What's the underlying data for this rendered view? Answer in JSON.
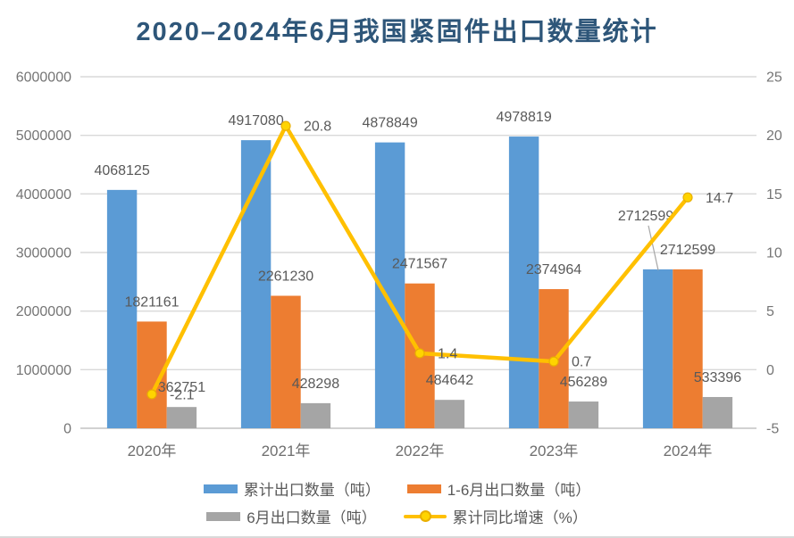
{
  "title": "2020–2024年6月我国紧固件出口数量统计",
  "chart_data": {
    "type": "bar",
    "combo": "bar+line",
    "title": "2020–2024年6月我国紧固件出口数量统计",
    "categories": [
      "2020年",
      "2021年",
      "2022年",
      "2023年",
      "2024年"
    ],
    "series": [
      {
        "key": "cumulative-export",
        "name": "累计出口数量（吨）",
        "chart": "bar",
        "axis": "left",
        "color": "#5B9BD5",
        "values": [
          4068125,
          4917080,
          4878849,
          4978819,
          2712599
        ]
      },
      {
        "key": "jan-jun-export",
        "name": "1-6月出口数量（吨）",
        "chart": "bar",
        "axis": "left",
        "color": "#ED7D31",
        "values": [
          1821161,
          2261230,
          2471567,
          2374964,
          2712599
        ]
      },
      {
        "key": "june-export",
        "name": "6月出口数量（吨）",
        "chart": "bar",
        "axis": "left",
        "color": "#A5A5A5",
        "values": [
          362751,
          428298,
          484642,
          456289,
          533396
        ]
      },
      {
        "key": "yoy-growth",
        "name": "累计同比增速（%）",
        "chart": "line",
        "axis": "right",
        "color": "#FFC000",
        "marker_fill": "#FFD400",
        "marker_stroke": "#E9AF00",
        "values": [
          -2.1,
          20.8,
          1.4,
          0.7,
          14.7
        ]
      }
    ],
    "left_axis": {
      "min": 0,
      "max": 6000000,
      "step": 1000000,
      "tick_labels": [
        "0",
        "1000000",
        "2000000",
        "3000000",
        "4000000",
        "5000000",
        "6000000"
      ]
    },
    "right_axis": {
      "min": -5,
      "max": 25,
      "step": 5,
      "tick_labels": [
        "-5",
        "0",
        "5",
        "10",
        "15",
        "20",
        "25"
      ]
    },
    "grid": true,
    "legend_position": "bottom",
    "label_callout": {
      "series_index": 0,
      "point_index": 4
    },
    "colors": {
      "title": "#2E5679",
      "axis_text": "#757575",
      "data_label": "#595959",
      "gridline": "#D9D9D9",
      "baseline": "#C3C3C3",
      "callout_leader": "#A6A6A6"
    }
  }
}
